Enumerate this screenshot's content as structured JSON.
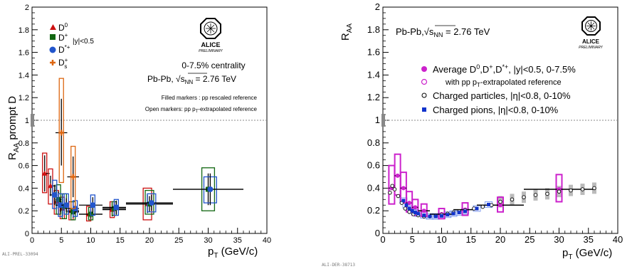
{
  "chart_data": [
    {
      "type": "scatter",
      "id": "left",
      "ylabel_main": "R",
      "ylabel_sub": "AA",
      "ylabel_rest": " prompt D",
      "xlabel_main": "p",
      "xlabel_sub": "T",
      "xlabel_rest": " (GeV/c)",
      "xlim": [
        0,
        40
      ],
      "ylim": [
        0,
        2
      ],
      "xticks": [
        "0",
        "5",
        "10",
        "15",
        "20",
        "25",
        "30",
        "35",
        "40"
      ],
      "yticks": [
        "0",
        "0.2",
        "0.4",
        "0.6",
        "0.8",
        "1",
        "1.2",
        "1.4",
        "1.6",
        "1.8",
        "2"
      ],
      "reference_line": 1,
      "legend": [
        {
          "label": "D",
          "sup": "0",
          "sub": "",
          "color": "#cc1111",
          "marker": "triangle"
        },
        {
          "label": "D",
          "sup": "+",
          "sub": "",
          "color": "#116611",
          "marker": "square"
        },
        {
          "label": "D",
          "sup": "*+",
          "sub": "",
          "color": "#2255cc",
          "marker": "circle"
        },
        {
          "label": "D",
          "sup": "+",
          "sub": "s",
          "color": "#dd6611",
          "marker": "cross"
        }
      ],
      "legend_note": "|y|<0.5",
      "centrality": "0-7.5% centrality",
      "system_prefix": "Pb-Pb, ",
      "system_sqrt": "s",
      "system_sub": "NN",
      "system_value": " = 2.76 TeV",
      "note_filled": "Filled markers : pp rescaled reference",
      "note_open_prefix": "Open markers: pp p",
      "note_open_sub": "T",
      "note_open_suffix": "-extrapolated reference",
      "logo_text": "ALICE",
      "logo_sub": "PRELIMINARY",
      "figure_id": "ALI-PREL-33094",
      "series": [
        {
          "name": "D0",
          "color": "#cc1111",
          "points": [
            {
              "x": 2.5,
              "y": 0.53,
              "ex": 0.5,
              "ylo": 0.37,
              "yhi": 0.69,
              "sys": [
                0.36,
                0.71
              ]
            },
            {
              "x": 3.5,
              "y": 0.42,
              "ex": 0.5,
              "ylo": 0.33,
              "yhi": 0.51,
              "sys": [
                0.26,
                0.57
              ]
            },
            {
              "x": 4.5,
              "y": 0.28,
              "ex": 0.5,
              "ylo": 0.22,
              "yhi": 0.34,
              "sys": [
                0.17,
                0.38
              ]
            },
            {
              "x": 5.5,
              "y": 0.22,
              "ex": 0.5,
              "ylo": 0.17,
              "yhi": 0.27,
              "sys": [
                0.13,
                0.32
              ]
            },
            {
              "x": 7,
              "y": 0.2,
              "ex": 1,
              "ylo": 0.15,
              "yhi": 0.25,
              "sys": [
                0.12,
                0.28
              ]
            },
            {
              "x": 10,
              "y": 0.17,
              "ex": 2,
              "ylo": 0.13,
              "yhi": 0.21,
              "sys": [
                0.11,
                0.24
              ]
            },
            {
              "x": 14,
              "y": 0.21,
              "ex": 2,
              "ylo": 0.15,
              "yhi": 0.27,
              "sys": [
                0.14,
                0.28
              ]
            },
            {
              "x": 20,
              "y": 0.26,
              "ex": 4,
              "ylo": 0.18,
              "yhi": 0.34,
              "sys": [
                0.12,
                0.4
              ]
            }
          ]
        },
        {
          "name": "D+",
          "color": "#116611",
          "points": [
            {
              "x": 4.5,
              "y": 0.3,
              "ex": 0.5,
              "ylo": 0.23,
              "yhi": 0.37,
              "sys": [
                0.17,
                0.43
              ]
            },
            {
              "x": 5.5,
              "y": 0.24,
              "ex": 0.5,
              "ylo": 0.18,
              "yhi": 0.3,
              "sys": [
                0.13,
                0.35
              ]
            },
            {
              "x": 7,
              "y": 0.19,
              "ex": 1,
              "ylo": 0.14,
              "yhi": 0.24,
              "sys": [
                0.12,
                0.28
              ]
            },
            {
              "x": 10,
              "y": 0.17,
              "ex": 2,
              "ylo": 0.13,
              "yhi": 0.21,
              "sys": [
                0.12,
                0.23
              ]
            },
            {
              "x": 14,
              "y": 0.22,
              "ex": 2,
              "ylo": 0.16,
              "yhi": 0.28,
              "sys": [
                0.16,
                0.28
              ]
            },
            {
              "x": 20,
              "y": 0.26,
              "ex": 4,
              "ylo": 0.19,
              "yhi": 0.33,
              "sys": [
                0.17,
                0.38
              ]
            },
            {
              "x": 30,
              "y": 0.39,
              "ex": 6,
              "ylo": 0.25,
              "yhi": 0.53,
              "sys": [
                0.2,
                0.58
              ]
            }
          ]
        },
        {
          "name": "D*+",
          "color": "#2255cc",
          "points": [
            {
              "x": 3.5,
              "y": 0.34,
              "ex": 0.5,
              "ylo": 0.25,
              "yhi": 0.43,
              "sys": [
                0.22,
                0.47
              ]
            },
            {
              "x": 4.5,
              "y": 0.25,
              "ex": 0.5,
              "ylo": 0.19,
              "yhi": 0.31,
              "sys": [
                0.15,
                0.35
              ]
            },
            {
              "x": 5.5,
              "y": 0.25,
              "ex": 0.5,
              "ylo": 0.19,
              "yhi": 0.31,
              "sys": [
                0.17,
                0.35
              ]
            },
            {
              "x": 7,
              "y": 0.22,
              "ex": 1,
              "ylo": 0.17,
              "yhi": 0.27,
              "sys": [
                0.15,
                0.29
              ]
            },
            {
              "x": 10,
              "y": 0.25,
              "ex": 2,
              "ylo": 0.18,
              "yhi": 0.32,
              "sys": [
                0.16,
                0.34
              ]
            },
            {
              "x": 14,
              "y": 0.23,
              "ex": 2,
              "ylo": 0.17,
              "yhi": 0.29,
              "sys": [
                0.16,
                0.3
              ]
            },
            {
              "x": 20,
              "y": 0.27,
              "ex": 4,
              "ylo": 0.2,
              "yhi": 0.34,
              "sys": [
                0.19,
                0.35
              ]
            },
            {
              "x": 30,
              "y": 0.39,
              "ex": 6,
              "ylo": 0.25,
              "yhi": 0.53,
              "sys": [
                0.27,
                0.5
              ]
            }
          ]
        },
        {
          "name": "Ds+",
          "color": "#dd6611",
          "points": [
            {
              "x": 5,
              "y": 0.89,
              "ex": 1,
              "ylo": 0.6,
              "yhi": 1.19,
              "sys": [
                0.45,
                1.37
              ]
            },
            {
              "x": 7,
              "y": 0.5,
              "ex": 1,
              "ylo": 0.32,
              "yhi": 0.68,
              "sys": [
                0.22,
                0.77
              ]
            }
          ]
        }
      ]
    },
    {
      "type": "scatter",
      "id": "right",
      "ylabel_main": "R",
      "ylabel_sub": "AA",
      "xlabel_main": "p",
      "xlabel_sub": "T",
      "xlabel_rest": " (GeV/c)",
      "xlim": [
        0,
        40
      ],
      "ylim": [
        0,
        2
      ],
      "xticks": [
        "0",
        "5",
        "10",
        "15",
        "20",
        "25",
        "30",
        "35",
        "40"
      ],
      "yticks": [
        "0",
        "0.2",
        "0.4",
        "0.6",
        "0.8",
        "1",
        "1.2",
        "1.4",
        "1.6",
        "1.8",
        "2"
      ],
      "reference_line": 1,
      "system_prefix": "Pb-Pb,",
      "system_sqrt": "s",
      "system_sub": "NN",
      "system_value": " = 2.76 TeV",
      "legend": [
        {
          "text": "Average D",
          "sup1": "0",
          "mid1": ",D",
          "sup2": "+",
          "mid2": ",D",
          "sup3": "*+",
          "rest": ", |y|<0.5, 0-7.5%",
          "color": "#cc22cc",
          "marker": "filled-circle"
        },
        {
          "text": "with pp p",
          "sub": "T",
          "rest": "-extrapolated reference",
          "color": "#cc22cc",
          "marker": "open-circle"
        },
        {
          "text": "Charged particles, |η|<0.8, 0-10%",
          "color": "#000000",
          "marker": "open-circle"
        },
        {
          "text": "Charged pions, |η|<0.8, 0-10%",
          "color": "#1133cc",
          "marker": "filled-square"
        }
      ],
      "logo_text": "ALICE",
      "logo_sub": "PRELIMINARY",
      "figure_id": "ALI-DER-38713",
      "series": [
        {
          "name": "Average D",
          "color": "#cc22cc",
          "points": [
            {
              "x": 1.5,
              "y": 0.4,
              "ex": 0.5,
              "sys": [
                0.26,
                0.6
              ]
            },
            {
              "x": 2.5,
              "y": 0.51,
              "ex": 0.5,
              "sys": [
                0.34,
                0.7
              ]
            },
            {
              "x": 3.5,
              "y": 0.4,
              "ex": 0.5,
              "sys": [
                0.27,
                0.54
              ]
            },
            {
              "x": 4.5,
              "y": 0.27,
              "ex": 0.5,
              "sys": [
                0.19,
                0.37
              ]
            },
            {
              "x": 5.5,
              "y": 0.23,
              "ex": 0.5,
              "sys": [
                0.16,
                0.3
              ]
            },
            {
              "x": 7,
              "y": 0.2,
              "ex": 1,
              "sys": [
                0.15,
                0.26
              ]
            },
            {
              "x": 10,
              "y": 0.17,
              "ex": 2,
              "sys": [
                0.13,
                0.22
              ]
            },
            {
              "x": 14,
              "y": 0.21,
              "ex": 2,
              "sys": [
                0.16,
                0.27
              ]
            },
            {
              "x": 20,
              "y": 0.25,
              "ex": 4,
              "sys": [
                0.19,
                0.32
              ]
            },
            {
              "x": 30,
              "y": 0.39,
              "ex": 6,
              "sys": [
                0.28,
                0.52
              ]
            }
          ]
        },
        {
          "name": "Charged particles",
          "color": "#000000",
          "points": [
            {
              "x": 1.2,
              "y": 0.36
            },
            {
              "x": 1.6,
              "y": 0.42
            },
            {
              "x": 2.0,
              "y": 0.39
            },
            {
              "x": 2.6,
              "y": 0.33
            },
            {
              "x": 3.2,
              "y": 0.27
            },
            {
              "x": 3.8,
              "y": 0.22
            },
            {
              "x": 4.5,
              "y": 0.19
            },
            {
              "x": 5.2,
              "y": 0.17
            },
            {
              "x": 6.0,
              "y": 0.16
            },
            {
              "x": 7.0,
              "y": 0.15
            },
            {
              "x": 8.0,
              "y": 0.15
            },
            {
              "x": 9.0,
              "y": 0.155
            },
            {
              "x": 10.0,
              "y": 0.165
            },
            {
              "x": 11.0,
              "y": 0.175
            },
            {
              "x": 12.0,
              "y": 0.185
            },
            {
              "x": 13.0,
              "y": 0.195
            },
            {
              "x": 14.0,
              "y": 0.205
            },
            {
              "x": 15.5,
              "y": 0.22
            },
            {
              "x": 17.0,
              "y": 0.235
            },
            {
              "x": 18.5,
              "y": 0.25
            },
            {
              "x": 20.0,
              "y": 0.28
            },
            {
              "x": 22.0,
              "y": 0.3
            },
            {
              "x": 24.0,
              "y": 0.32
            },
            {
              "x": 26.0,
              "y": 0.34
            },
            {
              "x": 28.0,
              "y": 0.35
            },
            {
              "x": 30.0,
              "y": 0.37
            },
            {
              "x": 32.0,
              "y": 0.38
            },
            {
              "x": 34.0,
              "y": 0.39
            },
            {
              "x": 36.0,
              "y": 0.4
            }
          ]
        },
        {
          "name": "Charged pions",
          "color": "#1133cc",
          "points": [
            {
              "x": 3.5,
              "y": 0.29
            },
            {
              "x": 4.0,
              "y": 0.25
            },
            {
              "x": 4.5,
              "y": 0.22
            },
            {
              "x": 5.0,
              "y": 0.2
            },
            {
              "x": 5.5,
              "y": 0.185
            },
            {
              "x": 6.0,
              "y": 0.175
            },
            {
              "x": 7.0,
              "y": 0.16
            },
            {
              "x": 8.0,
              "y": 0.15
            },
            {
              "x": 9.0,
              "y": 0.15
            },
            {
              "x": 10.0,
              "y": 0.155
            },
            {
              "x": 11.0,
              "y": 0.165
            },
            {
              "x": 12.0,
              "y": 0.175
            },
            {
              "x": 13.0,
              "y": 0.185
            },
            {
              "x": 14.0,
              "y": 0.195
            },
            {
              "x": 16.0,
              "y": 0.22
            },
            {
              "x": 18.0,
              "y": 0.255
            }
          ]
        }
      ]
    }
  ]
}
